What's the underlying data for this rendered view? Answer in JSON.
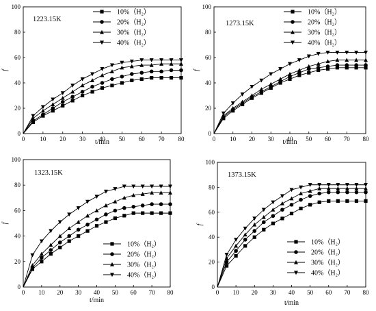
{
  "chart_data": [
    {
      "type": "line",
      "title": "1223.15K",
      "xlabel": "t/min",
      "ylabel": "f",
      "xlim": [
        0,
        80
      ],
      "ylim": [
        0,
        100
      ],
      "xticks": [
        "0",
        "10",
        "20",
        "30",
        "40",
        "50",
        "60",
        "70",
        "80"
      ],
      "yticks": [
        "0",
        "20",
        "40",
        "60",
        "80",
        "100"
      ],
      "legend_position": "top-right",
      "x": [
        0,
        5,
        10,
        15,
        20,
        25,
        30,
        35,
        40,
        45,
        50,
        55,
        60,
        65,
        70,
        75,
        80
      ],
      "series": [
        {
          "name": "10%（H₂）",
          "marker": "square",
          "values": [
            0,
            9,
            14,
            18,
            22,
            26,
            30,
            33,
            36,
            38,
            40,
            42,
            43,
            44,
            44,
            44,
            44
          ]
        },
        {
          "name": "20%（H₂）",
          "marker": "circle",
          "values": [
            0,
            10,
            15,
            20,
            25,
            29,
            33,
            37,
            40,
            43,
            45,
            47,
            48,
            49,
            49,
            50,
            50
          ]
        },
        {
          "name": "30%（H₂）",
          "marker": "triangle-up",
          "values": [
            0,
            12,
            18,
            23,
            28,
            33,
            38,
            42,
            46,
            49,
            52,
            53,
            54,
            54,
            55,
            55,
            55
          ]
        },
        {
          "name": "40%（H₂）",
          "marker": "triangle-down",
          "values": [
            0,
            14,
            21,
            27,
            32,
            38,
            43,
            47,
            51,
            54,
            56,
            57,
            58,
            58,
            58,
            58,
            58
          ]
        }
      ]
    },
    {
      "type": "line",
      "title": "1273.15K",
      "xlabel": "t/min",
      "ylabel": "f",
      "xlim": [
        0,
        80
      ],
      "ylim": [
        0,
        100
      ],
      "xticks": [
        "0",
        "10",
        "20",
        "30",
        "40",
        "50",
        "60",
        "70",
        "80"
      ],
      "yticks": [
        "0",
        "20",
        "40",
        "60",
        "80",
        "100"
      ],
      "legend_position": "top-right",
      "x": [
        0,
        5,
        10,
        15,
        20,
        25,
        30,
        35,
        40,
        45,
        50,
        55,
        60,
        65,
        70,
        75,
        80
      ],
      "series": [
        {
          "name": "10%（H₂）",
          "marker": "square",
          "values": [
            0,
            12,
            18,
            23,
            28,
            32,
            36,
            40,
            43,
            46,
            48,
            50,
            51,
            52,
            52,
            52,
            52
          ]
        },
        {
          "name": "20%（H₂）",
          "marker": "circle",
          "values": [
            0,
            13,
            19,
            24,
            29,
            33,
            37,
            41,
            45,
            48,
            51,
            52,
            53,
            54,
            54,
            54,
            54
          ]
        },
        {
          "name": "30%（H₂）",
          "marker": "triangle-up",
          "values": [
            0,
            14,
            20,
            25,
            30,
            35,
            39,
            43,
            47,
            50,
            53,
            55,
            57,
            58,
            58,
            58,
            58
          ]
        },
        {
          "name": "40%（H₂）",
          "marker": "triangle-down",
          "values": [
            0,
            16,
            24,
            31,
            37,
            42,
            47,
            51,
            55,
            58,
            61,
            63,
            64,
            64,
            64,
            64,
            64
          ]
        }
      ]
    },
    {
      "type": "line",
      "title": "1323.15K",
      "xlabel": "t/min",
      "ylabel": "f",
      "xlim": [
        0,
        80
      ],
      "ylim": [
        0,
        100
      ],
      "xticks": [
        "0",
        "10",
        "20",
        "30",
        "40",
        "50",
        "60",
        "70",
        "80"
      ],
      "yticks": [
        "0",
        "20",
        "40",
        "60",
        "80",
        "100"
      ],
      "legend_position": "bottom-right",
      "x": [
        0,
        5,
        10,
        15,
        20,
        25,
        30,
        35,
        40,
        45,
        50,
        55,
        60,
        65,
        70,
        75,
        80
      ],
      "series": [
        {
          "name": "10%（H₂）",
          "marker": "square",
          "values": [
            0,
            14,
            20,
            26,
            31,
            36,
            40,
            44,
            48,
            51,
            54,
            56,
            58,
            58,
            58,
            58,
            58
          ]
        },
        {
          "name": "20%（H₂）",
          "marker": "circle",
          "values": [
            0,
            15,
            23,
            29,
            35,
            40,
            45,
            49,
            53,
            57,
            60,
            62,
            63,
            64,
            65,
            65,
            65
          ]
        },
        {
          "name": "30%（H₂）",
          "marker": "triangle-up",
          "values": [
            0,
            17,
            26,
            33,
            40,
            46,
            51,
            56,
            60,
            64,
            67,
            70,
            72,
            73,
            74,
            74,
            74
          ]
        },
        {
          "name": "40%（H₂）",
          "marker": "triangle-down",
          "values": [
            0,
            25,
            36,
            44,
            51,
            57,
            62,
            67,
            71,
            75,
            77,
            79,
            79,
            79,
            79,
            79,
            79
          ]
        }
      ]
    },
    {
      "type": "line",
      "title": "1373.15K",
      "xlabel": "t/min",
      "ylabel": "f",
      "xlim": [
        0,
        80
      ],
      "ylim": [
        0,
        100
      ],
      "xticks": [
        "0",
        "10",
        "20",
        "30",
        "40",
        "50",
        "60",
        "70",
        "80"
      ],
      "yticks": [
        "0",
        "20",
        "40",
        "60",
        "80",
        "100"
      ],
      "legend_position": "bottom-right",
      "x": [
        0,
        5,
        10,
        15,
        20,
        25,
        30,
        35,
        40,
        45,
        50,
        55,
        60,
        65,
        70,
        75,
        80
      ],
      "series": [
        {
          "name": "10%（H₂）",
          "marker": "square",
          "values": [
            0,
            17,
            25,
            33,
            40,
            46,
            51,
            55,
            59,
            63,
            66,
            68,
            69,
            69,
            69,
            69,
            69
          ]
        },
        {
          "name": "20%（H₂）",
          "marker": "circle",
          "values": [
            0,
            20,
            29,
            38,
            45,
            52,
            57,
            62,
            66,
            70,
            73,
            75,
            76,
            76,
            76,
            76,
            76
          ]
        },
        {
          "name": "30%（H₂）",
          "marker": "triangle-up",
          "values": [
            0,
            23,
            33,
            42,
            50,
            56,
            62,
            67,
            71,
            75,
            77,
            79,
            79,
            79,
            79,
            79,
            79
          ]
        },
        {
          "name": "40%（H₂）",
          "marker": "triangle-down",
          "values": [
            0,
            26,
            38,
            47,
            55,
            62,
            68,
            73,
            78,
            80,
            82,
            82,
            82,
            82,
            82,
            82,
            82
          ]
        }
      ]
    }
  ]
}
